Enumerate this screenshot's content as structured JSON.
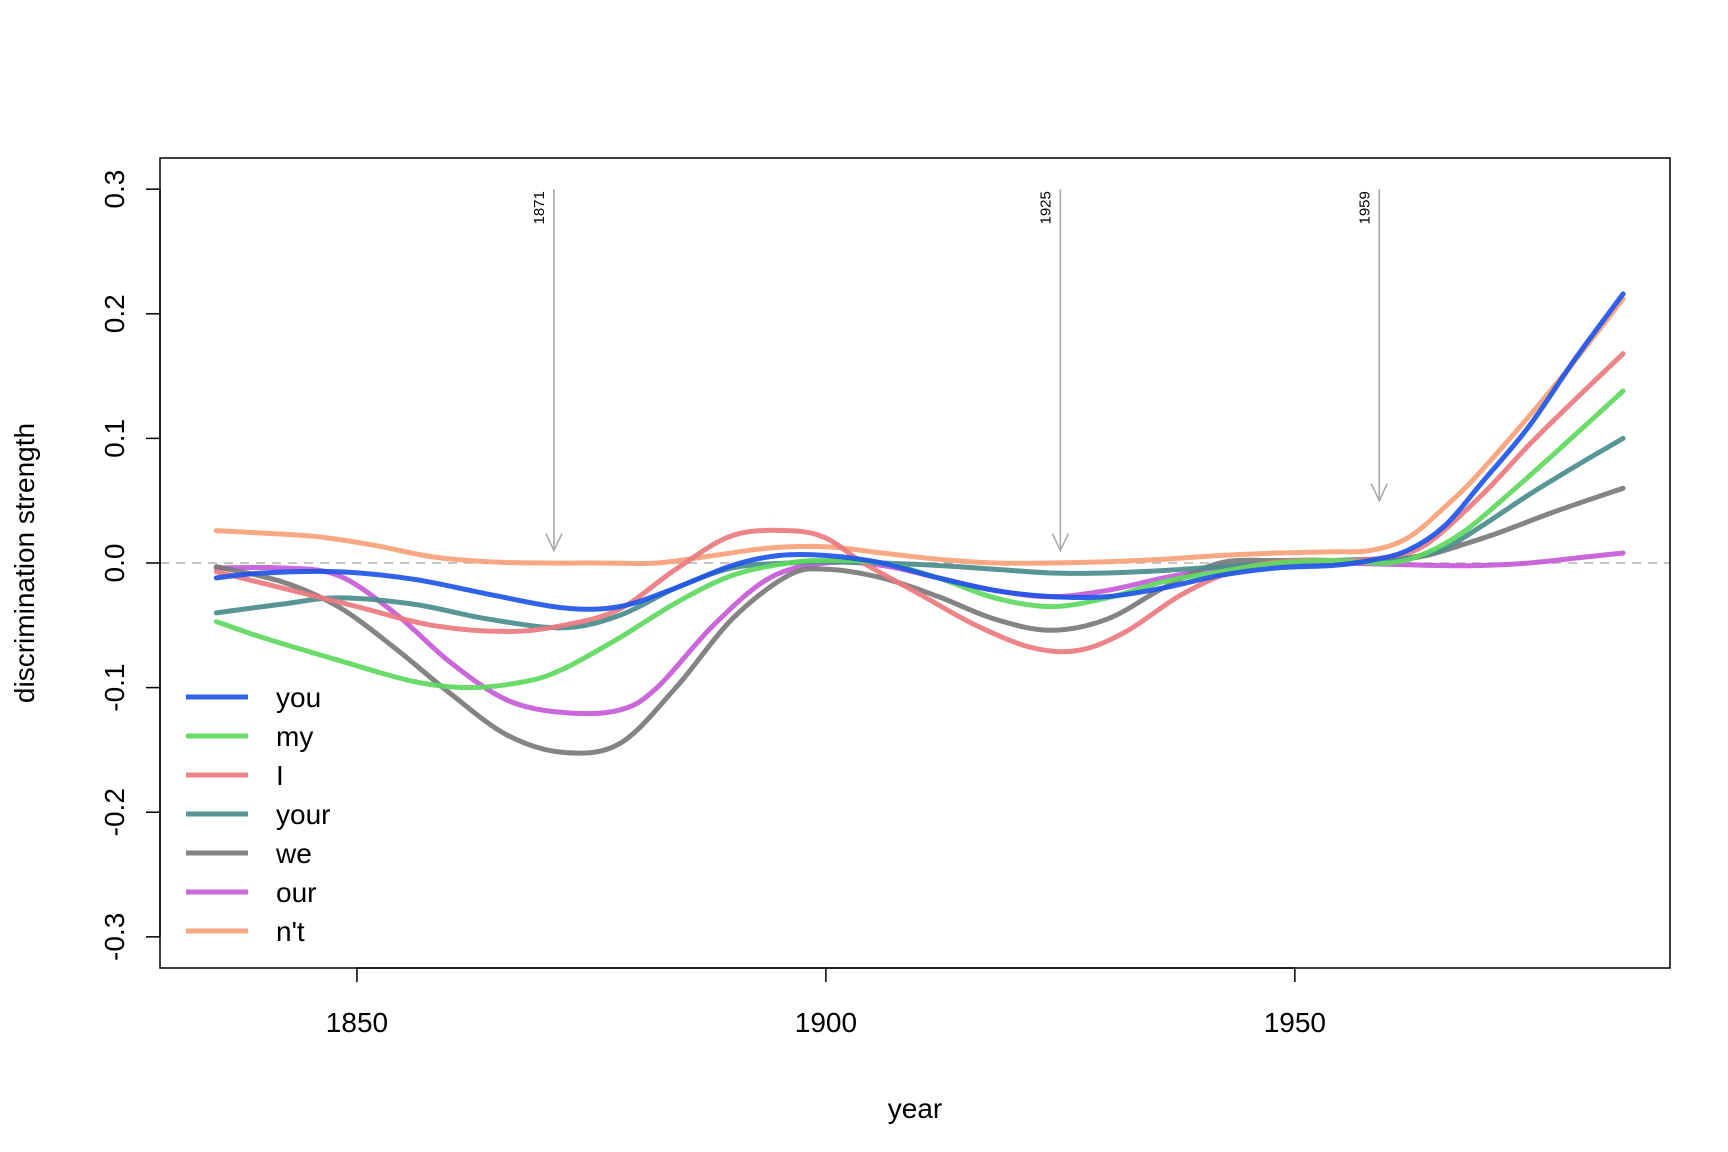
{
  "chart_data": {
    "type": "line",
    "title": "",
    "xlabel": "year",
    "ylabel": "discrimination strength",
    "xlim": [
      1829,
      1990
    ],
    "ylim": [
      -0.325,
      0.325
    ],
    "x_ticks": [
      1850,
      1900,
      1950
    ],
    "x_tick_labels": [
      "1850",
      "1900",
      "1950"
    ],
    "y_ticks": [
      -0.3,
      -0.2,
      -0.1,
      0.0,
      0.1,
      0.2,
      0.3
    ],
    "y_tick_labels": [
      "-0.3",
      "-0.2",
      "-0.1",
      "0.0",
      "0.1",
      "0.2",
      "0.3"
    ],
    "reference_line": {
      "y": 0.0,
      "style": "dashed",
      "color": "#b3b3b3"
    },
    "events": [
      {
        "year": 1871,
        "label": "1871",
        "from_y": 0.3,
        "to_y": 0.01
      },
      {
        "year": 1925,
        "label": "1925",
        "from_y": 0.3,
        "to_y": 0.01
      },
      {
        "year": 1959,
        "label": "1959",
        "from_y": 0.3,
        "to_y": 0.05
      }
    ],
    "legend_position": "bottom-left",
    "series": [
      {
        "name": "you",
        "color": "#1f55e8",
        "x": [
          1835,
          1840,
          1848,
          1856,
          1864,
          1872,
          1878,
          1884,
          1890,
          1895,
          1900,
          1906,
          1912,
          1918,
          1924,
          1930,
          1936,
          1942,
          1948,
          1954,
          1958,
          1962,
          1966,
          1970,
          1975,
          1980,
          1985
        ],
        "y": [
          -0.012,
          -0.008,
          -0.007,
          -0.013,
          -0.025,
          -0.036,
          -0.035,
          -0.02,
          -0.002,
          0.006,
          0.006,
          0.0,
          -0.012,
          -0.022,
          -0.027,
          -0.027,
          -0.02,
          -0.01,
          -0.004,
          -0.002,
          0.002,
          0.01,
          0.03,
          0.065,
          0.11,
          0.165,
          0.216
        ]
      },
      {
        "name": "my",
        "color": "#5ed95e",
        "x": [
          1835,
          1840,
          1848,
          1856,
          1862,
          1868,
          1872,
          1878,
          1884,
          1890,
          1896,
          1900,
          1906,
          1912,
          1918,
          1924,
          1930,
          1936,
          1942,
          1948,
          1954,
          1960,
          1964,
          1968,
          1972,
          1978,
          1985
        ],
        "y": [
          -0.047,
          -0.06,
          -0.078,
          -0.095,
          -0.1,
          -0.095,
          -0.085,
          -0.06,
          -0.032,
          -0.01,
          0.0,
          0.002,
          0.0,
          -0.012,
          -0.028,
          -0.035,
          -0.028,
          -0.015,
          -0.007,
          0.0,
          0.002,
          0.0,
          0.008,
          0.025,
          0.05,
          0.09,
          0.138
        ]
      },
      {
        "name": "I",
        "color": "#ea7a80",
        "x": [
          1835,
          1842,
          1850,
          1858,
          1866,
          1872,
          1878,
          1884,
          1890,
          1896,
          1900,
          1904,
          1910,
          1916,
          1922,
          1927,
          1932,
          1938,
          1944,
          1950,
          1956,
          1960,
          1964,
          1970,
          1975,
          1980,
          1985
        ],
        "y": [
          -0.007,
          -0.02,
          -0.035,
          -0.05,
          -0.055,
          -0.05,
          -0.037,
          -0.005,
          0.022,
          0.026,
          0.02,
          0.0,
          -0.025,
          -0.05,
          -0.068,
          -0.07,
          -0.055,
          -0.025,
          -0.005,
          0.002,
          0.002,
          0.005,
          0.015,
          0.055,
          0.095,
          0.132,
          0.168
        ]
      },
      {
        "name": "your",
        "color": "#4a8c8c",
        "x": [
          1835,
          1842,
          1848,
          1856,
          1864,
          1872,
          1878,
          1884,
          1890,
          1896,
          1900,
          1906,
          1912,
          1918,
          1924,
          1930,
          1936,
          1942,
          1948,
          1954,
          1958,
          1962,
          1966,
          1970,
          1975,
          1980,
          1985
        ],
        "y": [
          -0.04,
          -0.033,
          -0.028,
          -0.033,
          -0.045,
          -0.052,
          -0.042,
          -0.02,
          -0.004,
          0.0,
          0.001,
          0.0,
          -0.002,
          -0.005,
          -0.008,
          -0.008,
          -0.006,
          -0.003,
          0.0,
          0.002,
          0.003,
          0.004,
          0.012,
          0.03,
          0.055,
          0.078,
          0.1
        ]
      },
      {
        "name": "we",
        "color": "#7a7a7a",
        "x": [
          1835,
          1842,
          1848,
          1854,
          1860,
          1866,
          1872,
          1878,
          1884,
          1890,
          1896,
          1900,
          1906,
          1912,
          1918,
          1924,
          1930,
          1936,
          1942,
          1948,
          1954,
          1960,
          1964,
          1968,
          1972,
          1978,
          1985
        ],
        "y": [
          -0.003,
          -0.015,
          -0.035,
          -0.068,
          -0.105,
          -0.138,
          -0.152,
          -0.145,
          -0.1,
          -0.045,
          -0.01,
          -0.005,
          -0.012,
          -0.027,
          -0.045,
          -0.054,
          -0.045,
          -0.02,
          0.0,
          0.002,
          0.002,
          0.002,
          0.006,
          0.015,
          0.025,
          0.042,
          0.06
        ]
      },
      {
        "name": "our",
        "color": "#c55ad7",
        "x": [
          1835,
          1842,
          1848,
          1854,
          1860,
          1866,
          1872,
          1878,
          1882,
          1888,
          1894,
          1900,
          1906,
          1912,
          1918,
          1924,
          1930,
          1936,
          1942,
          1948,
          1954,
          1960,
          1965,
          1970,
          1975,
          1980,
          1985
        ],
        "y": [
          -0.004,
          -0.004,
          -0.01,
          -0.04,
          -0.08,
          -0.11,
          -0.12,
          -0.118,
          -0.1,
          -0.05,
          -0.012,
          0.0,
          -0.002,
          -0.012,
          -0.022,
          -0.027,
          -0.022,
          -0.012,
          -0.004,
          0.0,
          0.0,
          -0.001,
          -0.002,
          -0.002,
          0.0,
          0.004,
          0.008
        ]
      },
      {
        "name": "n't",
        "color": "#f7a27a",
        "x": [
          1835,
          1840,
          1846,
          1852,
          1858,
          1864,
          1870,
          1876,
          1882,
          1888,
          1894,
          1900,
          1906,
          1912,
          1918,
          1924,
          1930,
          1936,
          1942,
          1948,
          1954,
          1958,
          1962,
          1966,
          1970,
          1978,
          1985
        ],
        "y": [
          0.026,
          0.024,
          0.021,
          0.014,
          0.005,
          0.001,
          0.0,
          0.0,
          0.0,
          0.006,
          0.012,
          0.013,
          0.008,
          0.003,
          0.0,
          0.0,
          0.001,
          0.003,
          0.006,
          0.008,
          0.009,
          0.01,
          0.02,
          0.045,
          0.075,
          0.145,
          0.212
        ]
      }
    ]
  }
}
